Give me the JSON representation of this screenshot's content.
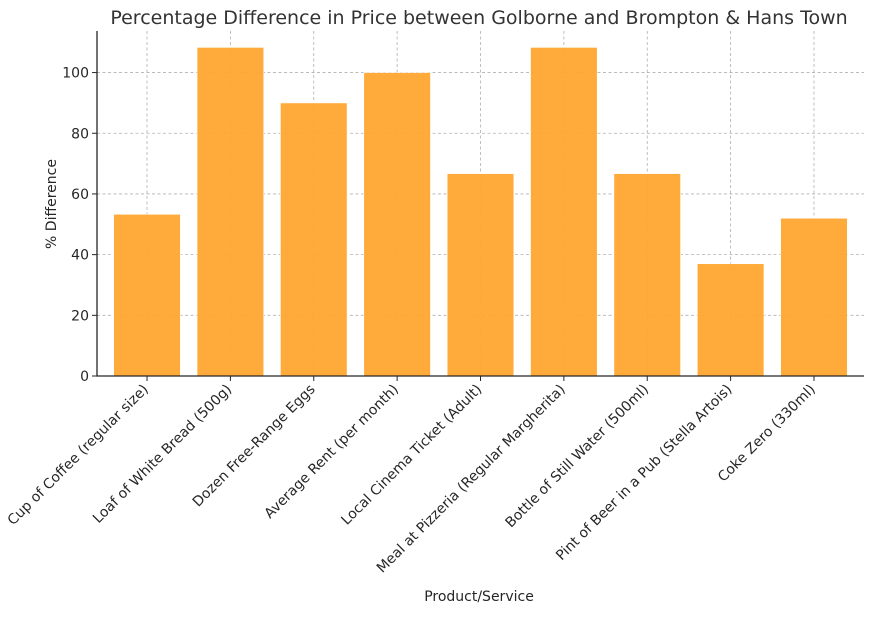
{
  "chart_data": {
    "type": "bar",
    "title": "Percentage Difference in Price between Golborne and Brompton & Hans Town",
    "xlabel": "Product/Service",
    "ylabel": "% Difference",
    "categories": [
      "Cup of Coffee (regular size)",
      "Loaf of White Bread (500g)",
      "Dozen Free-Range Eggs",
      "Average Rent (per month)",
      "Local Cinema Ticket (Adult)",
      "Meal at Pizzeria (Regular Margherita)",
      "Bottle of Still Water (500ml)",
      "Pint of Beer in a Pub (Stella Artois)",
      "Coke Zero (330ml)"
    ],
    "values": [
      53.3,
      108.3,
      90.0,
      100.0,
      66.7,
      108.3,
      66.7,
      37.0,
      52.0
    ],
    "ylim": [
      0,
      113.7
    ],
    "yticks": [
      0,
      20,
      40,
      60,
      80,
      100
    ],
    "grid": true,
    "bar_color": "#ffa630",
    "bar_edge_color": "#ffffff"
  }
}
